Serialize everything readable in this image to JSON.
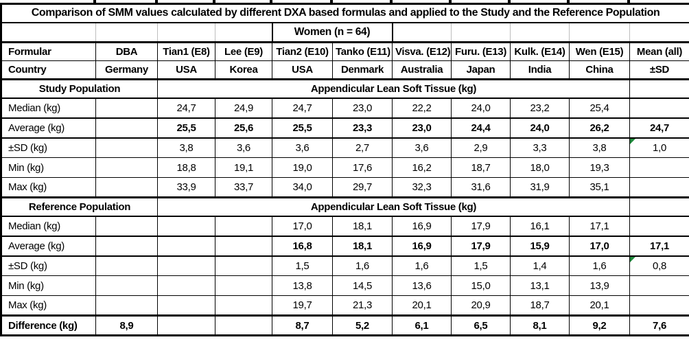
{
  "title": "Comparison of SMM values calculated by different DXA based formulas and applied to the Study and the Reference Population",
  "group_header": "Women (n = 64)",
  "header": {
    "formular_label": "Formular",
    "country_label": "Country",
    "columns": [
      {
        "formula": "DBA",
        "country": "Germany"
      },
      {
        "formula": "Tian1 (E8)",
        "country": "USA"
      },
      {
        "formula": "Lee (E9)",
        "country": "Korea"
      },
      {
        "formula": "Tian2 (E10)",
        "country": "USA"
      },
      {
        "formula": "Tanko (E11)",
        "country": "Denmark"
      },
      {
        "formula": "Visva. (E12)",
        "country": "Australia"
      },
      {
        "formula": "Furu. (E13)",
        "country": "Japan"
      },
      {
        "formula": "Kulk. (E14)",
        "country": "India"
      },
      {
        "formula": "Wen (E15)",
        "country": "China"
      }
    ],
    "mean_label": "Mean (all)",
    "mean_sub_label": "±SD"
  },
  "sections": [
    {
      "name": "Study Population",
      "measure_label": "Appendicular Lean Soft Tissue (kg)",
      "rows": [
        {
          "label": "Median (kg)",
          "bold": false,
          "dba": "",
          "values": [
            "24,7",
            "24,9",
            "24,7",
            "23,0",
            "22,2",
            "24,0",
            "23,2",
            "25,4"
          ],
          "mean": "",
          "mean_flag": false
        },
        {
          "label": "Average (kg)",
          "bold": true,
          "dba": "",
          "values": [
            "25,5",
            "25,6",
            "25,5",
            "23,3",
            "23,0",
            "24,4",
            "24,0",
            "26,2"
          ],
          "mean": "24,7",
          "mean_flag": false
        },
        {
          "label": "±SD (kg)",
          "bold": false,
          "dba": "",
          "values": [
            "3,8",
            "3,6",
            "3,6",
            "2,7",
            "3,6",
            "2,9",
            "3,3",
            "3,8"
          ],
          "mean": "1,0",
          "mean_flag": true
        },
        {
          "label": "Min (kg)",
          "bold": false,
          "dba": "",
          "values": [
            "18,8",
            "19,1",
            "19,0",
            "17,6",
            "16,2",
            "18,7",
            "18,0",
            "19,3"
          ],
          "mean": "",
          "mean_flag": false
        },
        {
          "label": "Max (kg)",
          "bold": false,
          "dba": "",
          "values": [
            "33,9",
            "33,7",
            "34,0",
            "29,7",
            "32,3",
            "31,6",
            "31,9",
            "35,1"
          ],
          "mean": "",
          "mean_flag": false
        }
      ]
    },
    {
      "name": "Reference Population",
      "measure_label": "Appendicular Lean Soft Tissue (kg)",
      "rows": [
        {
          "label": "Median (kg)",
          "bold": false,
          "dba": "",
          "values": [
            "",
            "",
            "17,0",
            "18,1",
            "16,9",
            "17,9",
            "16,1",
            "17,1"
          ],
          "mean": "",
          "mean_flag": false
        },
        {
          "label": "Average (kg)",
          "bold": true,
          "dba": "",
          "values": [
            "",
            "",
            "16,8",
            "18,1",
            "16,9",
            "17,9",
            "15,9",
            "17,0"
          ],
          "mean": "17,1",
          "mean_flag": false
        },
        {
          "label": "±SD (kg)",
          "bold": false,
          "dba": "",
          "values": [
            "",
            "",
            "1,5",
            "1,6",
            "1,6",
            "1,5",
            "1,4",
            "1,6"
          ],
          "mean": "0,8",
          "mean_flag": true
        },
        {
          "label": "Min (kg)",
          "bold": false,
          "dba": "",
          "values": [
            "",
            "",
            "13,8",
            "14,5",
            "13,6",
            "15,0",
            "13,1",
            "13,9"
          ],
          "mean": "",
          "mean_flag": false
        },
        {
          "label": "Max (kg)",
          "bold": false,
          "dba": "",
          "values": [
            "",
            "",
            "19,7",
            "21,3",
            "20,1",
            "20,9",
            "18,7",
            "20,1"
          ],
          "mean": "",
          "mean_flag": false
        }
      ]
    }
  ],
  "difference_row": {
    "label": "Difference (kg)",
    "dba": "8,9",
    "values": [
      "",
      "",
      "8,7",
      "5,2",
      "6,1",
      "6,5",
      "8,1",
      "9,2"
    ],
    "mean": "7,6"
  },
  "colors": {
    "border": "#000000",
    "gridline_gray": "#bdbdbd",
    "flag_green": "#1f8a3c"
  },
  "chart_data": {
    "type": "table",
    "title": "Comparison of SMM values calculated by different DXA based formulas and applied to the Study and the Reference Population",
    "group": "Women (n = 64)",
    "columns": [
      "Formular",
      "DBA",
      "Tian1 (E8)",
      "Lee (E9)",
      "Tian2 (E10)",
      "Tanko (E11)",
      "Visva. (E12)",
      "Furu. (E13)",
      "Kulk. (E14)",
      "Wen (E15)",
      "Mean (all)"
    ],
    "countries": [
      "Country",
      "Germany",
      "USA",
      "Korea",
      "USA",
      "Denmark",
      "Australia",
      "Japan",
      "India",
      "China",
      "±SD"
    ],
    "study_population": {
      "measure": "Appendicular Lean Soft Tissue (kg)",
      "median": [
        24.7,
        24.9,
        24.7,
        23.0,
        22.2,
        24.0,
        23.2,
        25.4
      ],
      "average": [
        25.5,
        25.6,
        25.5,
        23.3,
        23.0,
        24.4,
        24.0,
        26.2
      ],
      "average_mean_all": 24.7,
      "sd": [
        3.8,
        3.6,
        3.6,
        2.7,
        3.6,
        2.9,
        3.3,
        3.8
      ],
      "sd_mean_all": 1.0,
      "min": [
        18.8,
        19.1,
        19.0,
        17.6,
        16.2,
        18.7,
        18.0,
        19.3
      ],
      "max": [
        33.9,
        33.7,
        34.0,
        29.7,
        32.3,
        31.6,
        31.9,
        35.1
      ]
    },
    "reference_population": {
      "measure": "Appendicular Lean Soft Tissue (kg)",
      "median": [
        null,
        null,
        17.0,
        18.1,
        16.9,
        17.9,
        16.1,
        17.1
      ],
      "average": [
        null,
        null,
        16.8,
        18.1,
        16.9,
        17.9,
        15.9,
        17.0
      ],
      "average_mean_all": 17.1,
      "sd": [
        null,
        null,
        1.5,
        1.6,
        1.6,
        1.5,
        1.4,
        1.6
      ],
      "sd_mean_all": 0.8,
      "min": [
        null,
        null,
        13.8,
        14.5,
        13.6,
        15.0,
        13.1,
        13.9
      ],
      "max": [
        null,
        null,
        19.7,
        21.3,
        20.1,
        20.9,
        18.7,
        20.1
      ]
    },
    "difference_kg": {
      "dba": 8.9,
      "values": [
        null,
        null,
        8.7,
        5.2,
        6.1,
        6.5,
        8.1,
        9.2
      ],
      "mean_all": 7.6
    }
  }
}
